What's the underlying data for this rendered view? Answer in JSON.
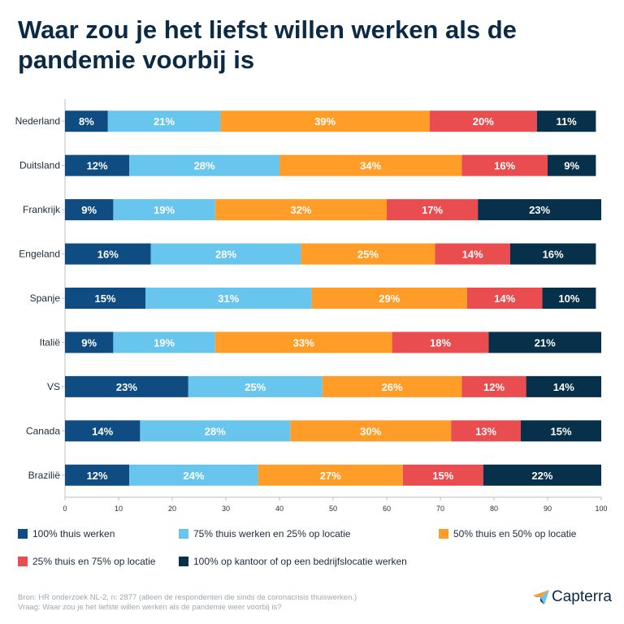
{
  "title": "Waar zou je het liefst willen werken als de pandemie voorbij is",
  "chart_data": {
    "type": "bar",
    "orientation": "horizontal",
    "stacked": true,
    "categories": [
      "Nederland",
      "Duitsland",
      "Frankrijk",
      "Engeland",
      "Spanje",
      "Italië",
      "VS",
      "Canada",
      "Brazilië"
    ],
    "series": [
      {
        "name": "100% thuis werken",
        "color": "#0f4c81",
        "values": [
          8,
          12,
          9,
          16,
          15,
          9,
          23,
          14,
          12
        ]
      },
      {
        "name": "75% thuis werken en 25% op locatie",
        "color": "#68c5ee",
        "values": [
          21,
          28,
          19,
          28,
          31,
          19,
          25,
          28,
          24
        ]
      },
      {
        "name": "50% thuis en 50% op locatie",
        "color": "#ff9d28",
        "values": [
          39,
          34,
          32,
          25,
          29,
          33,
          26,
          30,
          27
        ]
      },
      {
        "name": "25% thuis en 75% op locatie",
        "color": "#ea4d4f",
        "values": [
          20,
          16,
          17,
          14,
          14,
          18,
          12,
          13,
          15
        ]
      },
      {
        "name": "100% op kantoor of op een bedrijfslocatie werken",
        "color": "#07304a",
        "values": [
          11,
          9,
          23,
          16,
          10,
          21,
          14,
          15,
          22
        ]
      }
    ],
    "xlim": [
      0,
      100
    ],
    "xticks": [
      0,
      10,
      20,
      30,
      40,
      50,
      60,
      70,
      80,
      90,
      100
    ],
    "value_suffix": "%",
    "legend_position": "bottom"
  },
  "footer": {
    "source": "Bron: HR onderzoek NL-2, n: 2877 (alleen de respondenten die sinds de coronacrisis thuiswerken.)",
    "question": "Vraag: Waar zou je het liefste willen werken als de pandemie weer voorbij is?"
  },
  "logo": {
    "text": "Capterra"
  }
}
